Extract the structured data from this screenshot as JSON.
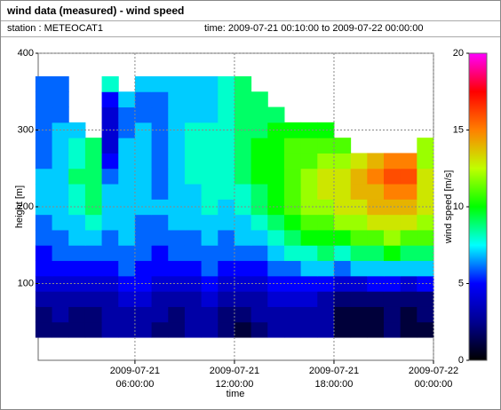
{
  "chart_data": {
    "type": "heatmap",
    "title": "wind data (measured) - wind speed",
    "station": "station : METEOCAT1",
    "subtitle": "time: 2009-07-21 00:10:00 to 2009-07-22 00:00:00",
    "x_label": "time",
    "y_label": "height [m]",
    "colorbar_label": "wind speed [m/s]",
    "x": [
      "2009-07-21 00:30:00",
      "2009-07-21 01:30:00",
      "2009-07-21 02:30:00",
      "2009-07-21 03:30:00",
      "2009-07-21 04:30:00",
      "2009-07-21 05:30:00",
      "2009-07-21 06:30:00",
      "2009-07-21 07:30:00",
      "2009-07-21 08:30:00",
      "2009-07-21 09:30:00",
      "2009-07-21 10:30:00",
      "2009-07-21 11:30:00",
      "2009-07-21 12:30:00",
      "2009-07-21 13:30:00",
      "2009-07-21 14:30:00",
      "2009-07-21 15:30:00",
      "2009-07-21 16:30:00",
      "2009-07-21 17:30:00",
      "2009-07-21 18:30:00",
      "2009-07-21 19:30:00",
      "2009-07-21 20:30:00",
      "2009-07-21 21:30:00",
      "2009-07-21 22:30:00",
      "2009-07-21 23:30:00"
    ],
    "y": [
      40,
      60,
      80,
      100,
      120,
      140,
      160,
      180,
      200,
      220,
      240,
      260,
      280,
      300,
      320,
      340,
      360
    ],
    "z": [
      [
        2,
        2,
        2,
        2,
        3,
        3,
        3,
        2,
        2,
        3,
        3,
        2,
        1,
        2,
        3,
        3,
        3,
        3,
        1,
        1,
        1,
        2,
        1,
        1
      ],
      [
        2,
        3,
        2,
        2,
        3,
        3,
        3,
        3,
        2,
        3,
        3,
        2,
        2,
        3,
        3,
        3,
        3,
        3,
        1,
        1,
        1,
        2,
        1,
        2
      ],
      [
        3,
        3,
        3,
        3,
        3,
        4,
        4,
        3,
        3,
        3,
        4,
        3,
        3,
        3,
        4,
        4,
        4,
        3,
        2,
        2,
        2,
        2,
        2,
        2
      ],
      [
        4,
        4,
        4,
        4,
        4,
        5,
        5,
        4,
        4,
        4,
        5,
        4,
        4,
        4,
        5,
        5,
        5,
        5,
        4,
        4,
        5,
        5,
        4,
        5
      ],
      [
        5,
        5,
        5,
        5,
        5,
        6,
        5,
        5,
        5,
        5,
        6,
        5,
        5,
        5,
        6,
        6,
        7,
        7,
        6,
        7,
        7,
        7,
        7,
        7
      ],
      [
        5,
        6,
        6,
        6,
        6,
        6,
        6,
        5,
        6,
        6,
        6,
        6,
        6,
        6,
        7,
        8,
        8,
        9,
        8,
        9,
        9,
        10,
        9,
        9
      ],
      [
        6,
        6,
        7,
        7,
        6,
        7,
        6,
        6,
        6,
        6,
        7,
        6,
        7,
        7,
        8,
        9,
        10,
        10,
        10,
        11,
        11,
        12,
        11,
        11
      ],
      [
        6,
        7,
        7,
        8,
        7,
        7,
        6,
        6,
        7,
        7,
        7,
        7,
        7,
        8,
        9,
        10,
        11,
        11,
        12,
        12,
        13,
        13,
        13,
        12
      ],
      [
        7,
        7,
        8,
        9,
        7,
        7,
        7,
        7,
        7,
        7,
        8,
        7,
        8,
        9,
        10,
        11,
        12,
        12,
        13,
        13,
        14,
        14,
        14,
        13
      ],
      [
        7,
        7,
        8,
        9,
        7,
        7,
        7,
        6,
        7,
        7,
        8,
        8,
        8,
        9,
        10,
        11,
        12,
        13,
        13,
        14,
        14,
        15,
        15,
        13
      ],
      [
        7,
        7,
        9,
        9,
        6,
        7,
        7,
        6,
        7,
        8,
        8,
        8,
        9,
        10,
        10,
        11,
        12,
        13,
        13,
        14,
        15,
        16,
        16,
        13
      ],
      [
        6,
        7,
        8,
        9,
        5,
        7,
        7,
        6,
        7,
        8,
        8,
        8,
        9,
        10,
        10,
        11,
        11,
        12,
        12,
        13,
        14,
        15,
        15,
        12
      ],
      [
        6,
        7,
        8,
        9,
        4,
        7,
        7,
        6,
        7,
        8,
        8,
        8,
        9,
        10,
        10,
        11,
        11,
        11,
        11,
        null,
        null,
        null,
        null,
        12
      ],
      [
        6,
        7,
        7,
        null,
        4,
        6,
        7,
        6,
        7,
        8,
        8,
        8,
        9,
        9,
        10,
        10,
        10,
        10,
        null,
        null,
        null,
        null,
        null,
        null
      ],
      [
        6,
        6,
        null,
        null,
        4,
        6,
        6,
        6,
        7,
        7,
        7,
        8,
        9,
        9,
        9,
        null,
        null,
        null,
        null,
        null,
        null,
        null,
        null,
        null
      ],
      [
        6,
        6,
        null,
        null,
        5,
        7,
        6,
        6,
        7,
        7,
        7,
        8,
        9,
        9,
        null,
        null,
        null,
        null,
        null,
        null,
        null,
        null,
        null,
        null
      ],
      [
        6,
        6,
        null,
        null,
        8,
        null,
        7,
        7,
        7,
        7,
        7,
        8,
        9,
        null,
        null,
        null,
        null,
        null,
        null,
        null,
        null,
        null,
        null,
        null
      ]
    ],
    "xlim": [
      "2009-07-21 00:10:00",
      "2009-07-22 00:00:00"
    ],
    "xticks": [
      "2009-07-21 06:00:00",
      "2009-07-21 12:00:00",
      "2009-07-21 18:00:00",
      "2009-07-22 00:00:00"
    ],
    "ylim": [
      0,
      400
    ],
    "yticks": [
      100,
      200,
      300,
      400
    ],
    "zlim": [
      0,
      20
    ],
    "zticks": [
      0,
      5,
      10,
      15,
      20
    ],
    "colorscale": [
      "#000000",
      "#000090",
      "#0000ff",
      "#00ffff",
      "#00ff00",
      "#c0ff00",
      "#ff8000",
      "#ff0000",
      "#ff00ff"
    ],
    "grid": true
  }
}
